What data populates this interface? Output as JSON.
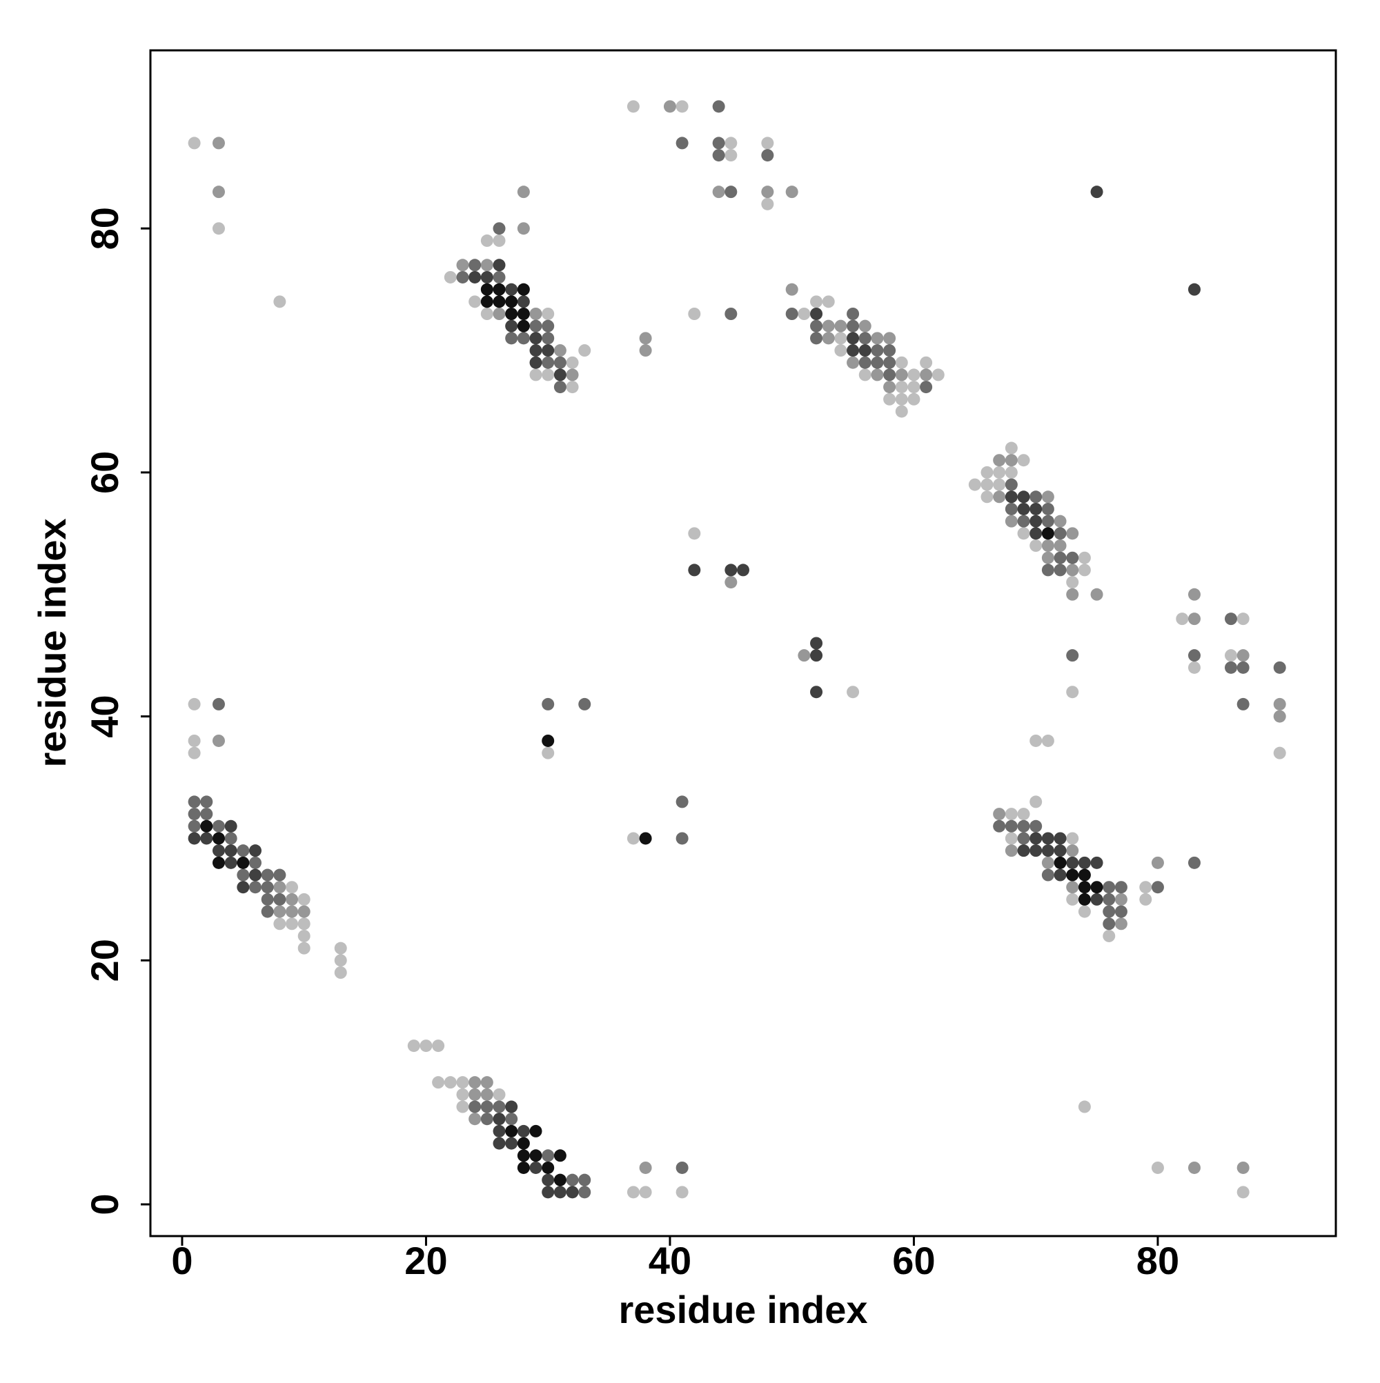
{
  "chart_data": {
    "type": "scatter",
    "x_label": "residue index",
    "y_label": "residue index",
    "xlim": [
      -2.6,
      94.6
    ],
    "ylim": [
      -2.6,
      94.6
    ],
    "xticks": [
      0,
      20,
      40,
      60,
      80
    ],
    "yticks": [
      0,
      20,
      40,
      60,
      80
    ],
    "grid": false,
    "series": [
      {
        "color": "#bdbdbd",
        "x": [
          1,
          3,
          8,
          22,
          24,
          25,
          25,
          26,
          29,
          30,
          30,
          32,
          32,
          33,
          37,
          41,
          45,
          45,
          48,
          48,
          42,
          51,
          52,
          53,
          54,
          54,
          56,
          58,
          59,
          59,
          59,
          59,
          60,
          60,
          60,
          61,
          62,
          65,
          66,
          66,
          66,
          67,
          67,
          68,
          68,
          69,
          69,
          70,
          73,
          74,
          74,
          83,
          86,
          87,
          90,
          73,
          70,
          71,
          42,
          55,
          1,
          1,
          1,
          30,
          8,
          9,
          9,
          10,
          10,
          10,
          10,
          13,
          13,
          13,
          37,
          68,
          68,
          69,
          70,
          73,
          73,
          74,
          76,
          79,
          79,
          19,
          20,
          21,
          21,
          22,
          23,
          23,
          23,
          26,
          37,
          38,
          41,
          74,
          80,
          87,
          82
        ],
        "y": [
          87,
          80,
          74,
          76,
          74,
          73,
          79,
          79,
          68,
          73,
          68,
          69,
          67,
          70,
          90,
          90,
          87,
          86,
          87,
          82,
          73,
          73,
          74,
          74,
          71,
          70,
          68,
          66,
          69,
          67,
          66,
          65,
          68,
          67,
          66,
          69,
          68,
          59,
          60,
          59,
          58,
          60,
          59,
          62,
          60,
          61,
          55,
          54,
          51,
          53,
          52,
          44,
          45,
          48,
          37,
          42,
          38,
          38,
          55,
          42,
          41,
          38,
          37,
          37,
          23,
          26,
          23,
          25,
          23,
          22,
          21,
          21,
          20,
          19,
          30,
          32,
          30,
          32,
          33,
          30,
          25,
          24,
          22,
          26,
          25,
          13,
          13,
          13,
          10,
          10,
          10,
          9,
          8,
          9,
          1,
          1,
          1,
          8,
          3,
          1,
          48
        ]
      },
      {
        "color": "#979797",
        "x": [
          3,
          3,
          23,
          25,
          26,
          28,
          28,
          29,
          31,
          32,
          40,
          44,
          48,
          50,
          38,
          38,
          50,
          53,
          53,
          54,
          55,
          56,
          57,
          57,
          58,
          58,
          59,
          61,
          67,
          67,
          68,
          68,
          71,
          71,
          71,
          72,
          72,
          73,
          73,
          73,
          75,
          83,
          83,
          87,
          90,
          90,
          45,
          51,
          3,
          8,
          8,
          9,
          9,
          10,
          67,
          68,
          71,
          73,
          73,
          77,
          77,
          80,
          24,
          24,
          24,
          25,
          25,
          38,
          83,
          87
        ],
        "y": [
          87,
          83,
          77,
          77,
          73,
          80,
          83,
          73,
          70,
          68,
          90,
          83,
          83,
          83,
          71,
          70,
          75,
          72,
          71,
          72,
          69,
          72,
          71,
          68,
          71,
          67,
          68,
          68,
          61,
          58,
          61,
          56,
          58,
          54,
          53,
          56,
          54,
          55,
          52,
          50,
          50,
          50,
          48,
          45,
          41,
          40,
          51,
          45,
          38,
          26,
          24,
          25,
          24,
          24,
          32,
          29,
          28,
          29,
          26,
          25,
          23,
          28,
          10,
          9,
          7,
          10,
          9,
          3,
          3,
          3
        ]
      },
      {
        "color": "#6b6b6b",
        "x": [
          23,
          24,
          26,
          26,
          27,
          28,
          29,
          30,
          30,
          30,
          31,
          31,
          41,
          44,
          44,
          44,
          45,
          48,
          45,
          50,
          52,
          52,
          55,
          55,
          56,
          56,
          57,
          57,
          58,
          58,
          58,
          61,
          68,
          68,
          69,
          70,
          71,
          71,
          71,
          72,
          72,
          72,
          73,
          83,
          86,
          86,
          87,
          87,
          90,
          73,
          3,
          30,
          33,
          1,
          1,
          1,
          2,
          2,
          3,
          4,
          5,
          5,
          6,
          6,
          7,
          7,
          7,
          7,
          8,
          8,
          41,
          41,
          67,
          68,
          69,
          69,
          70,
          71,
          76,
          76,
          76,
          76,
          77,
          77,
          80,
          83,
          24,
          25,
          25,
          26,
          27,
          30,
          32,
          33,
          33,
          41
        ],
        "y": [
          76,
          77,
          80,
          76,
          71,
          71,
          72,
          72,
          71,
          69,
          69,
          67,
          87,
          90,
          87,
          86,
          83,
          86,
          73,
          73,
          72,
          71,
          73,
          72,
          71,
          69,
          70,
          69,
          70,
          69,
          68,
          67,
          59,
          57,
          56,
          58,
          57,
          56,
          52,
          55,
          53,
          52,
          53,
          45,
          48,
          44,
          44,
          41,
          44,
          45,
          41,
          41,
          41,
          33,
          32,
          31,
          33,
          32,
          31,
          30,
          29,
          27,
          28,
          26,
          27,
          26,
          25,
          24,
          27,
          25,
          33,
          30,
          31,
          31,
          31,
          30,
          31,
          27,
          26,
          25,
          24,
          23,
          26,
          24,
          26,
          28,
          8,
          8,
          7,
          8,
          7,
          4,
          2,
          2,
          1,
          3
        ]
      },
      {
        "color": "#404040",
        "x": [
          24,
          25,
          26,
          27,
          27,
          28,
          29,
          29,
          29,
          30,
          31,
          52,
          55,
          55,
          56,
          68,
          69,
          69,
          70,
          70,
          70,
          75,
          83,
          42,
          45,
          46,
          52,
          52,
          52,
          1,
          2,
          3,
          4,
          4,
          4,
          5,
          6,
          6,
          69,
          70,
          70,
          71,
          71,
          72,
          72,
          72,
          73,
          74,
          75,
          75,
          26,
          26,
          26,
          27,
          27,
          28,
          29,
          30,
          30,
          31,
          32
        ],
        "y": [
          76,
          76,
          77,
          75,
          72,
          74,
          71,
          70,
          69,
          70,
          68,
          73,
          71,
          70,
          70,
          58,
          58,
          57,
          57,
          56,
          55,
          83,
          75,
          52,
          52,
          52,
          46,
          45,
          42,
          30,
          30,
          29,
          31,
          29,
          28,
          26,
          29,
          27,
          29,
          30,
          29,
          30,
          29,
          30,
          29,
          27,
          28,
          28,
          28,
          25,
          7,
          6,
          5,
          8,
          5,
          6,
          3,
          2,
          1,
          1,
          1
        ]
      },
      {
        "color": "#111111",
        "x": [
          25,
          25,
          26,
          26,
          27,
          27,
          28,
          28,
          28,
          71,
          30,
          2,
          3,
          3,
          5,
          38,
          72,
          73,
          74,
          74,
          74,
          75,
          27,
          28,
          28,
          28,
          29,
          29,
          30,
          31,
          31
        ],
        "y": [
          75,
          74,
          75,
          74,
          74,
          73,
          75,
          73,
          72,
          55,
          38,
          31,
          30,
          28,
          28,
          30,
          28,
          27,
          27,
          26,
          25,
          26,
          6,
          5,
          4,
          3,
          6,
          4,
          3,
          4,
          2
        ]
      }
    ]
  }
}
